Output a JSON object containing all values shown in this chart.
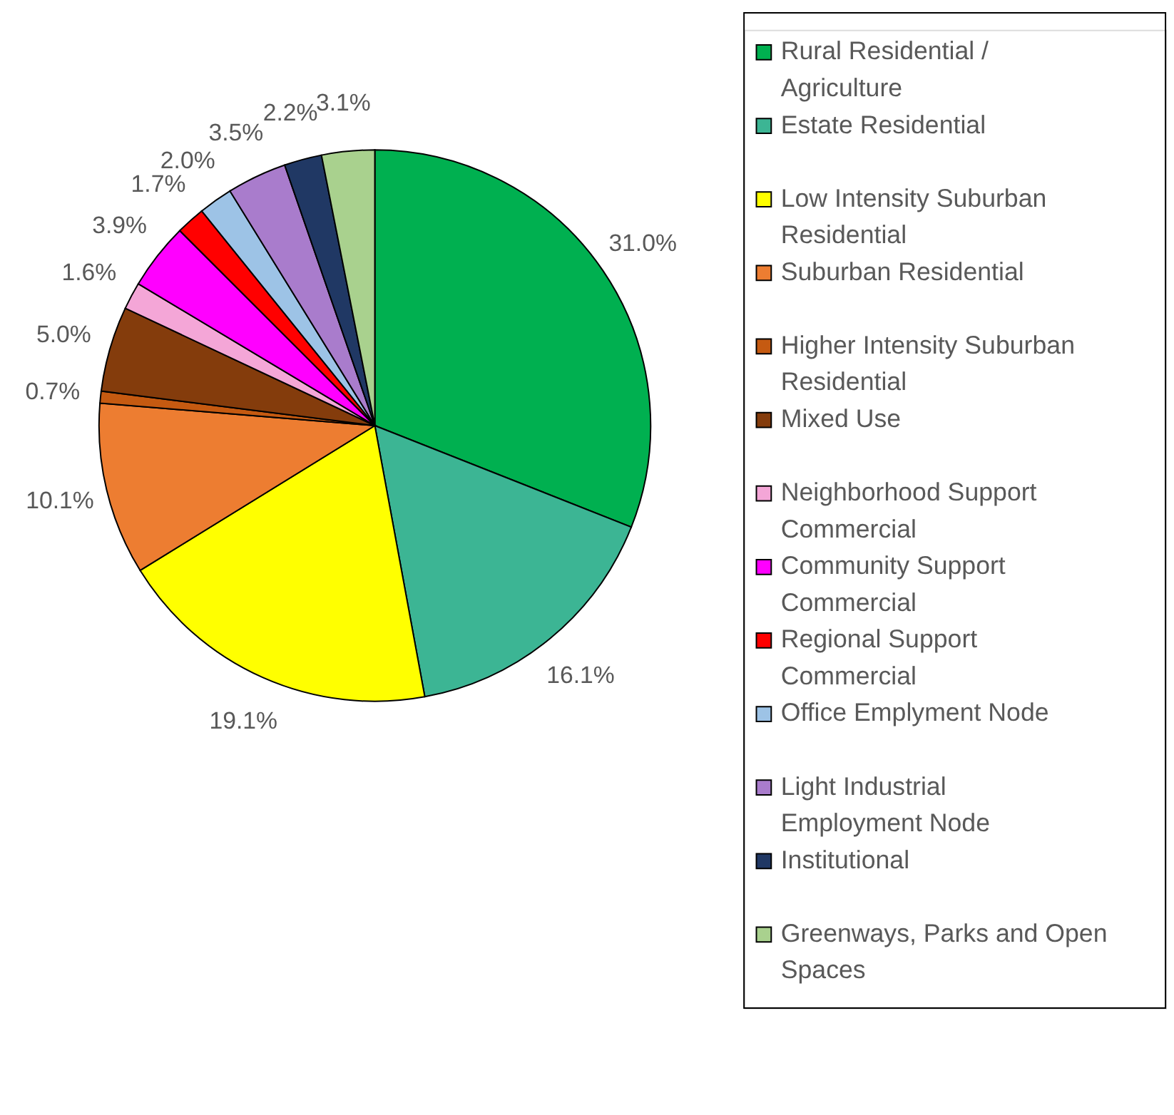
{
  "chart_data": {
    "type": "pie",
    "categories": [
      "Rural Residential / Agriculture",
      "Estate Residential",
      "Low Intensity Suburban Residential",
      "Suburban Residential",
      "Higher Intensity Suburban Residential",
      "Mixed Use",
      "Neighborhood Support Commercial",
      "Community Support Commercial",
      "Regional Support Commercial",
      "Office Emplyment Node",
      "Light Industrial Employment Node",
      "Institutional",
      "Greenways, Parks and Open Spaces"
    ],
    "values": [
      31.0,
      16.1,
      19.1,
      10.1,
      0.7,
      5.0,
      1.6,
      3.9,
      1.7,
      2.0,
      3.5,
      2.2,
      3.1
    ],
    "value_labels": [
      "31.0%",
      "16.1%",
      "19.1%",
      "10.1%",
      "0.7%",
      "5.0%",
      "1.6%",
      "3.9%",
      "1.7%",
      "2.0%",
      "3.5%",
      "2.2%",
      "3.1%"
    ],
    "colors": [
      "#00b050",
      "#3cb594",
      "#ffff00",
      "#ed7d31",
      "#c55a11",
      "#843c0c",
      "#f4a6d7",
      "#ff00ff",
      "#ff0000",
      "#9dc3e6",
      "#a97ccc",
      "#203864",
      "#a9d18e"
    ],
    "legend": "right"
  }
}
